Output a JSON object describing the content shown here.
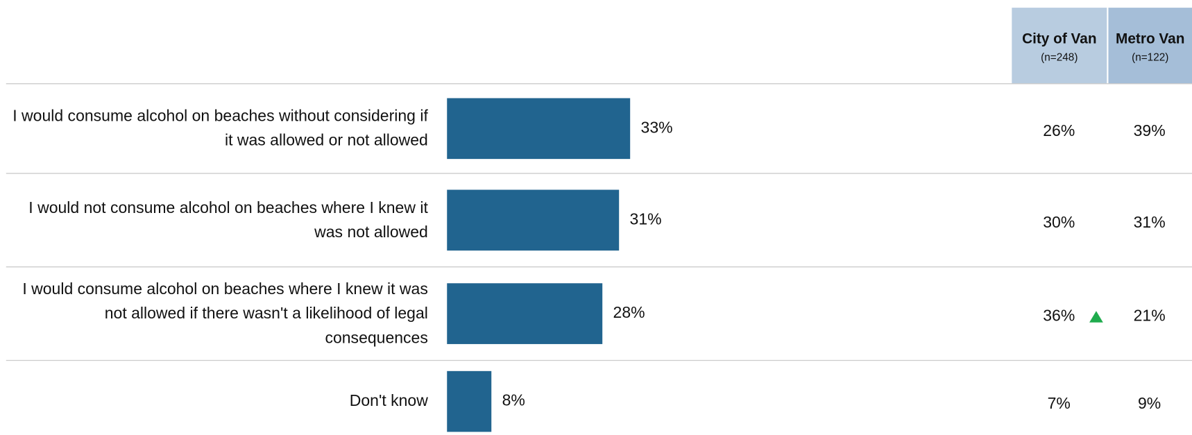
{
  "chart_data": {
    "type": "bar",
    "orientation": "horizontal",
    "categories": [
      "I would consume alcohol on beaches without considering if it was allowed or not allowed",
      "I would not consume alcohol on beaches where I knew it was not allowed",
      "I would consume alcohol on beaches where I knew it was not allowed if there wasn't a likelihood of legal consequences",
      "Don't know"
    ],
    "values": [
      33,
      31,
      28,
      8
    ],
    "value_labels": [
      "33%",
      "31%",
      "28%",
      "8%"
    ],
    "color": "#21648f"
  },
  "table": {
    "columns": [
      {
        "name": "City of Van",
        "n": "(n=248)",
        "color": "#b8cce0"
      },
      {
        "name": "Metro Van",
        "n": "(n=122)",
        "color": "#a5bed8"
      }
    ],
    "rows": [
      [
        "26%",
        "39%"
      ],
      [
        "30%",
        "31%"
      ],
      [
        "36%",
        "21%"
      ],
      [
        "7%",
        "9%"
      ]
    ]
  }
}
